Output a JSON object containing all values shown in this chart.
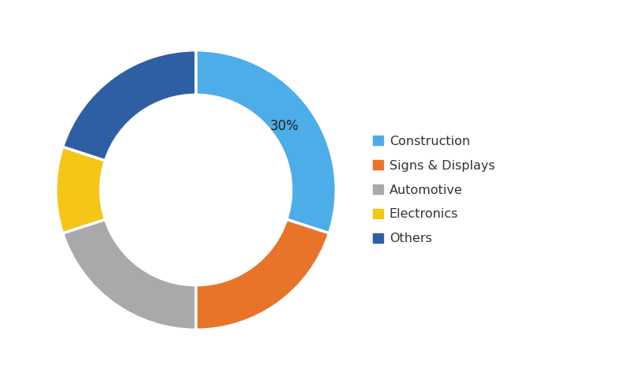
{
  "labels": [
    "Construction",
    "Signs & Displays",
    "Automotive",
    "Electronics",
    "Others"
  ],
  "values": [
    30,
    20,
    20,
    10,
    20
  ],
  "colors": [
    "#4DADE8",
    "#E8742A",
    "#A9A9A9",
    "#F5C518",
    "#2E5FA3"
  ],
  "annotate_label": "30%",
  "donut_width": 0.32,
  "background_color": "#FFFFFF",
  "legend_fontsize": 11.5,
  "annotation_fontsize": 12,
  "startangle": 90,
  "legend_marker_size": 8,
  "edgecolor": "#FFFFFF",
  "edgewidth": 2.5
}
